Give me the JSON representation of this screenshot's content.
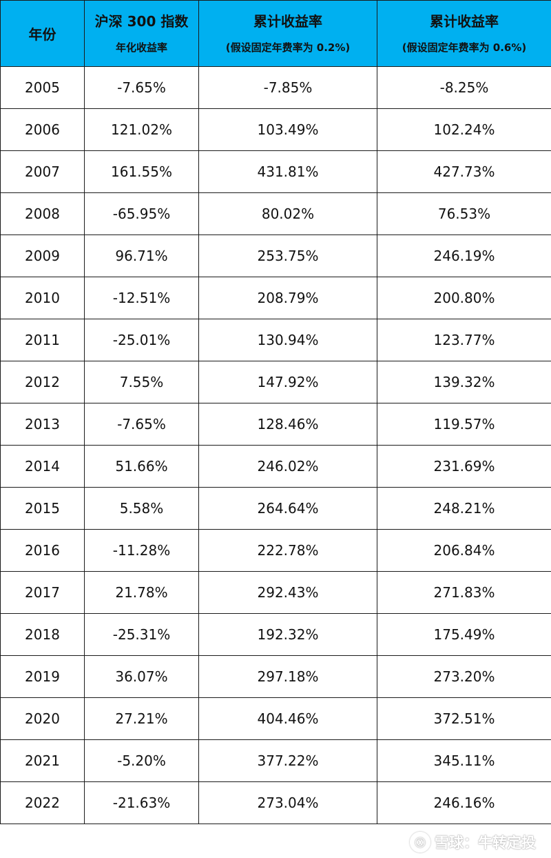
{
  "table": {
    "headers": {
      "year": "年份",
      "index_title": "沪深 300 指数",
      "index_subtitle": "年化收益率",
      "cum1_title": "累计收益率",
      "cum1_subtitle": "(假设固定年费率为 0.2%)",
      "cum2_title": "累计收益率",
      "cum2_subtitle": "(假设固定年费率为 0.6%)"
    },
    "rows": [
      {
        "year": "2005",
        "annual": "-7.65%",
        "cum_02": "-7.85%",
        "cum_06": "-8.25%"
      },
      {
        "year": "2006",
        "annual": "121.02%",
        "cum_02": "103.49%",
        "cum_06": "102.24%"
      },
      {
        "year": "2007",
        "annual": "161.55%",
        "cum_02": "431.81%",
        "cum_06": "427.73%"
      },
      {
        "year": "2008",
        "annual": "-65.95%",
        "cum_02": "80.02%",
        "cum_06": "76.53%"
      },
      {
        "year": "2009",
        "annual": "96.71%",
        "cum_02": "253.75%",
        "cum_06": "246.19%"
      },
      {
        "year": "2010",
        "annual": "-12.51%",
        "cum_02": "208.79%",
        "cum_06": "200.80%"
      },
      {
        "year": "2011",
        "annual": "-25.01%",
        "cum_02": "130.94%",
        "cum_06": "123.77%"
      },
      {
        "year": "2012",
        "annual": "7.55%",
        "cum_02": "147.92%",
        "cum_06": "139.32%"
      },
      {
        "year": "2013",
        "annual": "-7.65%",
        "cum_02": "128.46%",
        "cum_06": "119.57%"
      },
      {
        "year": "2014",
        "annual": "51.66%",
        "cum_02": "246.02%",
        "cum_06": "231.69%"
      },
      {
        "year": "2015",
        "annual": "5.58%",
        "cum_02": "264.64%",
        "cum_06": "248.21%"
      },
      {
        "year": "2016",
        "annual": "-11.28%",
        "cum_02": "222.78%",
        "cum_06": "206.84%"
      },
      {
        "year": "2017",
        "annual": "21.78%",
        "cum_02": "292.43%",
        "cum_06": "271.83%"
      },
      {
        "year": "2018",
        "annual": "-25.31%",
        "cum_02": "192.32%",
        "cum_06": "175.49%"
      },
      {
        "year": "2019",
        "annual": "36.07%",
        "cum_02": "297.18%",
        "cum_06": "273.20%"
      },
      {
        "year": "2020",
        "annual": "27.21%",
        "cum_02": "404.46%",
        "cum_06": "372.51%"
      },
      {
        "year": "2021",
        "annual": "-5.20%",
        "cum_02": "377.22%",
        "cum_06": "345.11%"
      },
      {
        "year": "2022",
        "annual": "-21.63%",
        "cum_02": "273.04%",
        "cum_06": "246.16%"
      }
    ]
  },
  "watermark": {
    "text": "雪球：牛转定投"
  },
  "colors": {
    "header_background": "#00b0f0",
    "border": "#1a1a1a"
  }
}
